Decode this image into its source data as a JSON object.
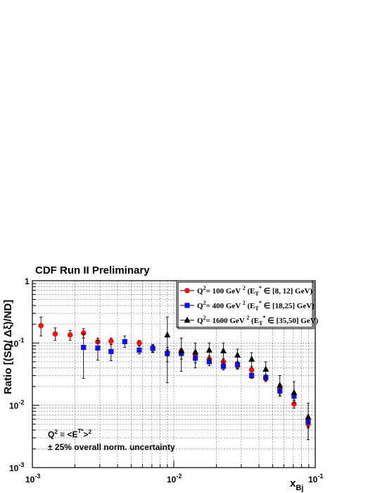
{
  "chart_data": {
    "type": "scatter",
    "title": "CDF Run II Preliminary",
    "ylabel": "Ratio [(SD/ Δξ)/ND]",
    "xlabel": "x_Bj",
    "x_log": true,
    "y_log": true,
    "xlim": [
      0.001,
      0.1
    ],
    "ylim": [
      0.001,
      1
    ],
    "grid": true,
    "legend_position": "top-right",
    "x_ticks": [
      {
        "value": 0.001,
        "base": "10",
        "exp": "-3"
      },
      {
        "value": 0.01,
        "base": "10",
        "exp": "-2"
      },
      {
        "value": 0.1,
        "base": "10",
        "exp": "-1"
      }
    ],
    "y_ticks": [
      {
        "value": 0.001,
        "base": "10",
        "exp": "-3"
      },
      {
        "value": 0.01,
        "base": "10",
        "exp": "-2"
      },
      {
        "value": 0.1,
        "base": "10",
        "exp": "-1"
      },
      {
        "value": 1,
        "base": "1",
        "exp": ""
      }
    ],
    "series": [
      {
        "name": "Q² = 100 GeV² (E_T* ∈ [8, 12] GeV)",
        "legend_parts": [
          "Q",
          "2",
          "= 100 GeV ",
          "2",
          " (E",
          "T",
          "*",
          " ∈ [8, 12] GeV)"
        ],
        "color": "#ee1111",
        "marker": "circle",
        "points": [
          {
            "x": 0.00115,
            "y": 0.19,
            "lo": 0.13,
            "hi": 0.26
          },
          {
            "x": 0.00145,
            "y": 0.14,
            "lo": 0.11,
            "hi": 0.175
          },
          {
            "x": 0.00185,
            "y": 0.135,
            "lo": 0.11,
            "hi": 0.16
          },
          {
            "x": 0.0023,
            "y": 0.145,
            "lo": 0.12,
            "hi": 0.17
          },
          {
            "x": 0.0029,
            "y": 0.105,
            "lo": 0.09,
            "hi": 0.12
          },
          {
            "x": 0.0036,
            "y": 0.107,
            "lo": 0.095,
            "hi": 0.12
          },
          {
            "x": 0.0057,
            "y": 0.1,
            "lo": 0.09,
            "hi": 0.11
          },
          {
            "x": 0.0071,
            "y": 0.082,
            "lo": 0.072,
            "hi": 0.092
          },
          {
            "x": 0.009,
            "y": 0.07,
            "lo": 0.062,
            "hi": 0.078
          },
          {
            "x": 0.0113,
            "y": 0.073,
            "lo": 0.064,
            "hi": 0.082
          },
          {
            "x": 0.0142,
            "y": 0.065,
            "lo": 0.057,
            "hi": 0.073
          },
          {
            "x": 0.0178,
            "y": 0.055,
            "lo": 0.048,
            "hi": 0.062
          },
          {
            "x": 0.0224,
            "y": 0.05,
            "lo": 0.044,
            "hi": 0.056
          },
          {
            "x": 0.0282,
            "y": 0.043,
            "lo": 0.038,
            "hi": 0.048
          },
          {
            "x": 0.0355,
            "y": 0.037,
            "lo": 0.032,
            "hi": 0.042
          },
          {
            "x": 0.0447,
            "y": 0.027,
            "lo": 0.024,
            "hi": 0.03
          },
          {
            "x": 0.0562,
            "y": 0.018,
            "lo": 0.015,
            "hi": 0.021
          },
          {
            "x": 0.0708,
            "y": 0.0105,
            "lo": 0.009,
            "hi": 0.012
          },
          {
            "x": 0.0891,
            "y": 0.005,
            "lo": 0.0043,
            "hi": 0.0058
          }
        ]
      },
      {
        "name": "Q² = 400 GeV² (E_T* ∈ [18,25] GeV)",
        "legend_parts": [
          "Q",
          "2",
          "= 400 GeV ",
          "2",
          " (E",
          "T",
          "*",
          " ∈ [18,25] GeV)"
        ],
        "color": "#1111ee",
        "marker": "square",
        "points": [
          {
            "x": 0.0023,
            "y": 0.085,
            "lo": 0.027,
            "hi": 0.14
          },
          {
            "x": 0.0029,
            "y": 0.083,
            "lo": 0.053,
            "hi": 0.11
          },
          {
            "x": 0.0036,
            "y": 0.073,
            "lo": 0.052,
            "hi": 0.095
          },
          {
            "x": 0.0045,
            "y": 0.105,
            "lo": 0.085,
            "hi": 0.13
          },
          {
            "x": 0.0057,
            "y": 0.077,
            "lo": 0.067,
            "hi": 0.09
          },
          {
            "x": 0.0071,
            "y": 0.082,
            "lo": 0.07,
            "hi": 0.095
          },
          {
            "x": 0.009,
            "y": 0.068,
            "lo": 0.05,
            "hi": 0.085
          },
          {
            "x": 0.0113,
            "y": 0.068,
            "lo": 0.055,
            "hi": 0.082
          },
          {
            "x": 0.0142,
            "y": 0.057,
            "lo": 0.048,
            "hi": 0.066
          },
          {
            "x": 0.0178,
            "y": 0.05,
            "lo": 0.043,
            "hi": 0.057
          },
          {
            "x": 0.0224,
            "y": 0.042,
            "lo": 0.037,
            "hi": 0.047
          },
          {
            "x": 0.0282,
            "y": 0.045,
            "lo": 0.039,
            "hi": 0.051
          },
          {
            "x": 0.0355,
            "y": 0.03,
            "lo": 0.027,
            "hi": 0.033
          },
          {
            "x": 0.0447,
            "y": 0.028,
            "lo": 0.025,
            "hi": 0.031
          },
          {
            "x": 0.0562,
            "y": 0.017,
            "lo": 0.014,
            "hi": 0.02
          },
          {
            "x": 0.0708,
            "y": 0.014,
            "lo": 0.012,
            "hi": 0.016
          },
          {
            "x": 0.0891,
            "y": 0.0055,
            "lo": 0.0045,
            "hi": 0.0065
          }
        ]
      },
      {
        "name": "Q² = 1600 GeV² (E_T* ∈ [35,50] GeV)",
        "legend_parts": [
          "Q",
          "2",
          "= 1600 GeV ",
          "2",
          " (E",
          "T",
          "*",
          " ∈ [35,50] GeV)"
        ],
        "color": "#000000",
        "marker": "triangle",
        "points": [
          {
            "x": 0.009,
            "y": 0.135,
            "lo": 0.023,
            "hi": 0.26
          },
          {
            "x": 0.0113,
            "y": 0.075,
            "lo": 0.035,
            "hi": 0.12
          },
          {
            "x": 0.0142,
            "y": 0.072,
            "lo": 0.04,
            "hi": 0.1
          },
          {
            "x": 0.0178,
            "y": 0.077,
            "lo": 0.052,
            "hi": 0.1
          },
          {
            "x": 0.0224,
            "y": 0.075,
            "lo": 0.05,
            "hi": 0.1
          },
          {
            "x": 0.0282,
            "y": 0.064,
            "lo": 0.048,
            "hi": 0.08
          },
          {
            "x": 0.0355,
            "y": 0.055,
            "lo": 0.04,
            "hi": 0.07
          },
          {
            "x": 0.0447,
            "y": 0.038,
            "lo": 0.028,
            "hi": 0.05
          },
          {
            "x": 0.0562,
            "y": 0.021,
            "lo": 0.014,
            "hi": 0.03
          },
          {
            "x": 0.0708,
            "y": 0.016,
            "lo": 0.011,
            "hi": 0.024
          },
          {
            "x": 0.0891,
            "y": 0.0065,
            "lo": 0.0028,
            "hi": 0.0108
          }
        ]
      }
    ],
    "annotations": {
      "q2_def": {
        "a": "Q",
        "a_sup": "2",
        "b": " ≡ <E",
        "b_sub": "T",
        "b_sup": "*",
        "c": ">",
        "c_sup": "2"
      },
      "uncertainty": "± 25% overall norm. uncertainty"
    }
  }
}
